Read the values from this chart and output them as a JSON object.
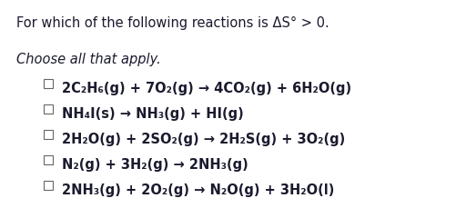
{
  "title": "For which of the following reactions is ΔS° > 0.",
  "subtitle": "Choose all that apply.",
  "reactions": [
    "2C₂H₆(g) + 7O₂(g) → 4CO₂(g) + 6H₂O(g)",
    "NH₄I(s) → NH₃(g) + HI(g)",
    "2H₂O(g) + 2SO₂(g) → 2H₂S(g) + 3O₂(g)",
    "N₂(g) + 3H₂(g) → 2NH₃(g)",
    "2NH₃(g) + 2O₂(g) → N₂O(g) + 3H₂O(l)"
  ],
  "bg_color": "#ffffff",
  "text_color": "#1a1a2e",
  "title_fontsize": 10.5,
  "subtitle_fontsize": 10.5,
  "reaction_fontsize": 10.5,
  "checkbox_color": "#666666"
}
